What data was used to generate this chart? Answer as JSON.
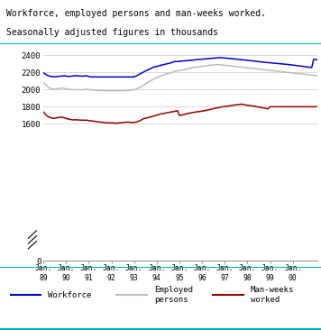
{
  "title_line1": "Workforce, employed persons and man-weeks worked.",
  "title_line2": "Seasonally adjusted figures in thousands",
  "title_bg_color": "#d8eef0",
  "title_border_color": "#00b0b0",
  "background_color": "#ffffff",
  "grid_color": "#cccccc",
  "workforce_color": "#0000cc",
  "employed_color": "#bbbbbb",
  "manweeks_color": "#990000",
  "workforce": [
    2198,
    2183,
    2168,
    2160,
    2155,
    2152,
    2150,
    2153,
    2155,
    2158,
    2160,
    2162,
    2158,
    2155,
    2155,
    2158,
    2162,
    2163,
    2162,
    2160,
    2158,
    2158,
    2160,
    2162,
    2153,
    2150,
    2148,
    2150,
    2148,
    2148,
    2147,
    2147,
    2147,
    2147,
    2147,
    2147,
    2147,
    2147,
    2147,
    2147,
    2147,
    2147,
    2147,
    2147,
    2148,
    2148,
    2148,
    2148,
    2150,
    2158,
    2170,
    2182,
    2195,
    2207,
    2218,
    2228,
    2238,
    2250,
    2260,
    2268,
    2272,
    2278,
    2285,
    2290,
    2295,
    2300,
    2305,
    2310,
    2318,
    2325,
    2330,
    2328,
    2330,
    2333,
    2336,
    2337,
    2340,
    2342,
    2343,
    2346,
    2348,
    2350,
    2352,
    2354,
    2355,
    2358,
    2360,
    2362,
    2364,
    2366,
    2368,
    2370,
    2372,
    2374,
    2374,
    2372,
    2370,
    2368,
    2366,
    2364,
    2362,
    2360,
    2358,
    2355,
    2352,
    2350,
    2348,
    2345,
    2342,
    2340,
    2338,
    2335,
    2332,
    2330,
    2328,
    2325,
    2322,
    2320,
    2318,
    2316,
    2313,
    2311,
    2309,
    2307,
    2305,
    2303,
    2301,
    2299,
    2297,
    2295,
    2293,
    2290,
    2288,
    2285,
    2282,
    2279,
    2276,
    2273,
    2270,
    2267,
    2264,
    2261,
    2258,
    2355,
    2352,
    2350,
    2348,
    2345,
    2342
  ],
  "employed": [
    2085,
    2065,
    2042,
    2022,
    2012,
    2006,
    2005,
    2008,
    2012,
    2016,
    2018,
    2015,
    2010,
    2005,
    2002,
    2000,
    2000,
    1999,
    1998,
    1998,
    1998,
    2000,
    2002,
    2005,
    2000,
    1998,
    1995,
    1994,
    1992,
    1990,
    1990,
    1990,
    1990,
    1990,
    1988,
    1988,
    1988,
    1988,
    1988,
    1988,
    1988,
    1988,
    1988,
    1990,
    1990,
    1990,
    1992,
    1995,
    1998,
    2005,
    2015,
    2025,
    2038,
    2052,
    2066,
    2080,
    2094,
    2108,
    2118,
    2130,
    2140,
    2150,
    2160,
    2168,
    2176,
    2184,
    2190,
    2195,
    2200,
    2210,
    2218,
    2220,
    2222,
    2226,
    2232,
    2238,
    2243,
    2248,
    2252,
    2258,
    2262,
    2265,
    2268,
    2270,
    2272,
    2276,
    2280,
    2283,
    2285,
    2288,
    2290,
    2292,
    2293,
    2292,
    2290,
    2288,
    2285,
    2282,
    2280,
    2278,
    2275,
    2272,
    2270,
    2268,
    2265,
    2262,
    2260,
    2258,
    2255,
    2252,
    2250,
    2248,
    2245,
    2242,
    2240,
    2238,
    2235,
    2232,
    2230,
    2228,
    2225,
    2222,
    2220,
    2218,
    2215,
    2212,
    2210,
    2208,
    2205,
    2202,
    2200,
    2198,
    2195,
    2192,
    2190,
    2188,
    2185,
    2182,
    2180,
    2178,
    2175,
    2172,
    2170,
    2168,
    2165,
    2162,
    2160,
    2158,
    2155
  ],
  "manweeks": [
    1740,
    1715,
    1692,
    1680,
    1672,
    1665,
    1665,
    1670,
    1675,
    1678,
    1678,
    1672,
    1665,
    1658,
    1653,
    1648,
    1646,
    1648,
    1646,
    1645,
    1643,
    1643,
    1643,
    1643,
    1638,
    1635,
    1632,
    1630,
    1626,
    1622,
    1620,
    1618,
    1616,
    1614,
    1612,
    1612,
    1610,
    1610,
    1608,
    1608,
    1610,
    1613,
    1616,
    1618,
    1620,
    1620,
    1618,
    1616,
    1616,
    1620,
    1626,
    1636,
    1648,
    1660,
    1666,
    1670,
    1676,
    1682,
    1688,
    1695,
    1702,
    1708,
    1715,
    1720,
    1724,
    1728,
    1732,
    1736,
    1740,
    1744,
    1750,
    1754,
    1698,
    1702,
    1708,
    1715,
    1720,
    1724,
    1728,
    1732,
    1735,
    1740,
    1742,
    1745,
    1748,
    1752,
    1758,
    1762,
    1768,
    1772,
    1778,
    1782,
    1786,
    1791,
    1796,
    1800,
    1802,
    1805,
    1808,
    1812,
    1816,
    1820,
    1822,
    1825,
    1828,
    1830,
    1826,
    1820,
    1818,
    1815,
    1812,
    1808,
    1805,
    1800,
    1796,
    1792,
    1788,
    1784,
    1780,
    1776,
    1800,
    1800,
    1800,
    1800,
    1800,
    1800,
    1800,
    1800,
    1800,
    1800,
    1800,
    1800,
    1800,
    1800,
    1800,
    1800,
    1800,
    1800,
    1800,
    1800,
    1800,
    1800,
    1800,
    1800,
    1800,
    1800,
    1800,
    1800,
    1800
  ]
}
